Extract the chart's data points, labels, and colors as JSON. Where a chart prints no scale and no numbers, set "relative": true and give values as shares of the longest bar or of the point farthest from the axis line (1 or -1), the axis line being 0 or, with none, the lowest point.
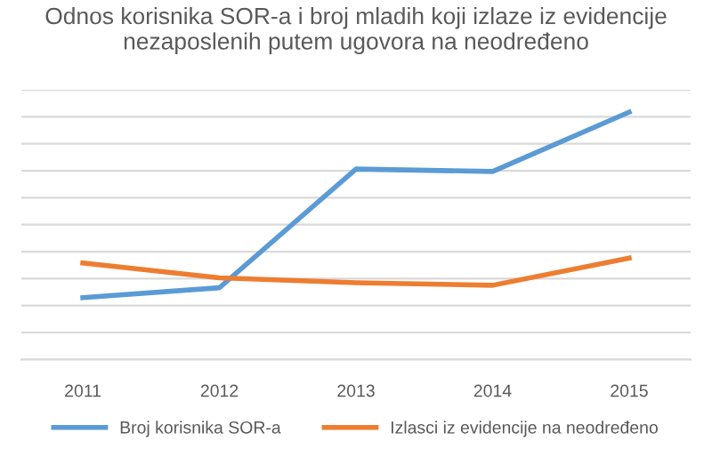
{
  "chart_data": {
    "type": "line",
    "title": "Odnos korisnika SOR-a i broj mladih koji izlaze iz evidencije nezaposlenih putem ugovora na neodređeno",
    "categories": [
      "2011",
      "2012",
      "2013",
      "2014",
      "2015"
    ],
    "relative": true,
    "grid": "y",
    "legend": "bottom",
    "marker": "none",
    "line_style": "solid",
    "series": [
      {
        "name": "Broj korisnika SOR-a",
        "color": "#5b9bd5",
        "values": [
          0.25,
          0.29,
          0.77,
          0.76,
          1.0
        ]
      },
      {
        "name": "Izlasci iz evidencije na neodređeno",
        "color": "#ed7d31",
        "values": [
          0.39,
          0.33,
          0.31,
          0.3,
          0.41
        ]
      }
    ]
  }
}
